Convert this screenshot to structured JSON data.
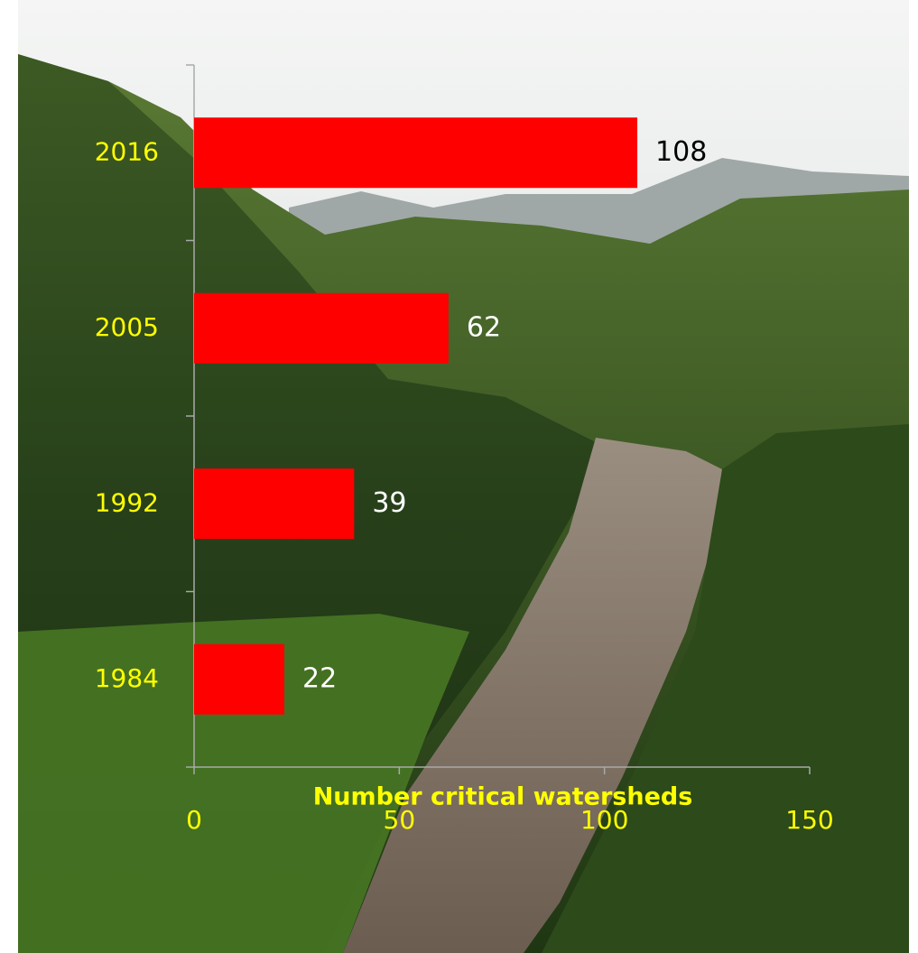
{
  "chart_data": {
    "type": "bar",
    "orientation": "horizontal",
    "xlabel": "Number critical watersheds",
    "categories": [
      "1984",
      "1992",
      "2005",
      "2016"
    ],
    "values": [
      22,
      39,
      62,
      108
    ],
    "color": "#ff0000",
    "value_label_colors": [
      "#ffffff",
      "#ffffff",
      "#ffffff",
      "#000000"
    ],
    "tick_label_color": "#ffff00",
    "xlim": [
      0,
      150
    ],
    "xticks": [
      0,
      50,
      100,
      150
    ],
    "grid": false
  }
}
